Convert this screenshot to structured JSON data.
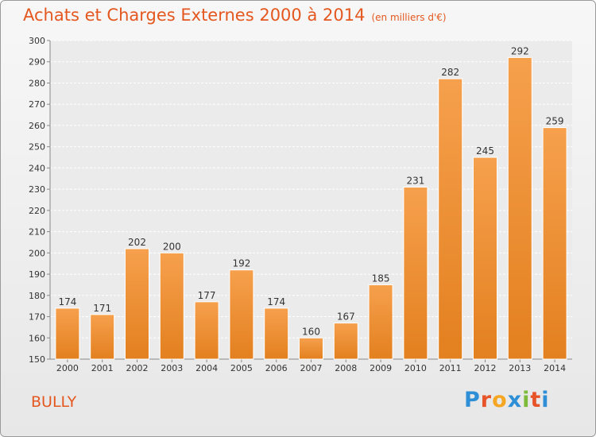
{
  "header": {
    "title": "Achats et Charges Externes 2000 à 2014",
    "unit": "(en milliers d'€)"
  },
  "footer": {
    "commune": "BULLY",
    "brand": "Proxiti"
  },
  "colors": {
    "bar_light": "#f6a04d",
    "bar_dark": "#e3801f",
    "title": "#e4571f"
  },
  "chart_data": {
    "type": "bar",
    "title": "Achats et Charges Externes 2000 à 2014",
    "categories": [
      "2000",
      "2001",
      "2002",
      "2003",
      "2004",
      "2005",
      "2006",
      "2007",
      "2008",
      "2009",
      "2010",
      "2011",
      "2012",
      "2013",
      "2014"
    ],
    "values": [
      174,
      171,
      202,
      200,
      177,
      192,
      174,
      160,
      167,
      185,
      231,
      282,
      245,
      292,
      259
    ],
    "ylim": [
      150,
      300
    ],
    "yticks": [
      150,
      160,
      170,
      180,
      190,
      200,
      210,
      220,
      230,
      240,
      250,
      260,
      270,
      280,
      290,
      300
    ],
    "grid": true
  }
}
